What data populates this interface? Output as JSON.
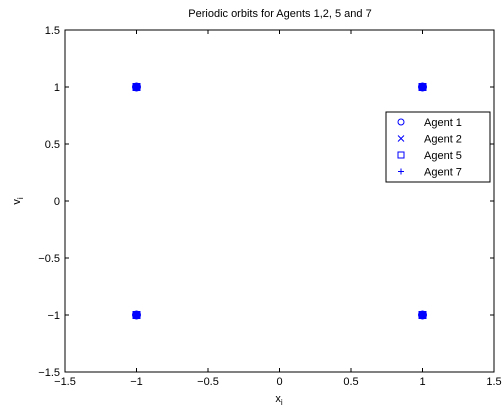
{
  "chart_data": {
    "type": "scatter",
    "title": "Periodic orbits for Agents 1,2, 5 and 7",
    "xlabel": {
      "main": "x",
      "sub": "i"
    },
    "ylabel": {
      "main": "v",
      "sub": "i"
    },
    "xlim": [
      -1.5,
      1.5
    ],
    "ylim": [
      -1.5,
      1.5
    ],
    "xticks": [
      -1.5,
      -1,
      -0.5,
      0,
      0.5,
      1,
      1.5
    ],
    "yticks": [
      -1.5,
      -1,
      -0.5,
      0,
      0.5,
      1,
      1.5
    ],
    "xtick_labels": [
      "−1.5",
      "−1",
      "−0.5",
      "0",
      "0.5",
      "1",
      "1.5"
    ],
    "ytick_labels": [
      "−1.5",
      "−1",
      "−0.5",
      "0",
      "0.5",
      "1",
      "1.5"
    ],
    "grid": false,
    "legend_position": "right",
    "color": "#0000ff",
    "series": [
      {
        "name": "Agent 1",
        "marker": "circle",
        "points": [
          [
            -1,
            1
          ],
          [
            1,
            1
          ],
          [
            -1,
            -1
          ],
          [
            1,
            -1
          ]
        ]
      },
      {
        "name": "Agent 2",
        "marker": "cross",
        "points": [
          [
            -1,
            1
          ],
          [
            1,
            1
          ],
          [
            -1,
            -1
          ],
          [
            1,
            -1
          ]
        ]
      },
      {
        "name": "Agent 5",
        "marker": "square",
        "points": [
          [
            -1,
            1
          ],
          [
            1,
            1
          ],
          [
            -1,
            -1
          ],
          [
            1,
            -1
          ]
        ]
      },
      {
        "name": "Agent 7",
        "marker": "plus",
        "points": [
          [
            -1,
            1
          ],
          [
            1,
            1
          ],
          [
            -1,
            -1
          ],
          [
            1,
            -1
          ]
        ]
      }
    ]
  }
}
